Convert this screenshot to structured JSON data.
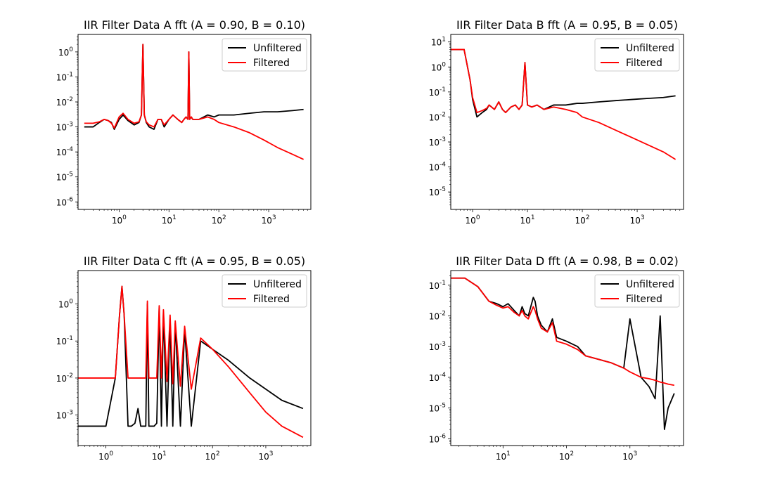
{
  "chart_data": [
    {
      "type": "line",
      "title": "IIR Filter Data A fft (A = 0.90, B = 0.10)",
      "xscale": "log",
      "yscale": "log",
      "xlim": [
        0.15,
        7000
      ],
      "ylim": [
        5e-07,
        5
      ],
      "xticks": [
        {
          "value": 1,
          "label": "10^0"
        },
        {
          "value": 10,
          "label": "10^1"
        },
        {
          "value": 100,
          "label": "10^2"
        },
        {
          "value": 1000,
          "label": "10^3"
        }
      ],
      "yticks": [
        {
          "value": 1e-06,
          "label": "10^-6"
        },
        {
          "value": 1e-05,
          "label": "10^-5"
        },
        {
          "value": 0.0001,
          "label": "10^-4"
        },
        {
          "value": 0.001,
          "label": "10^-3"
        },
        {
          "value": 0.01,
          "label": "10^-2"
        },
        {
          "value": 0.1,
          "label": "10^-1"
        },
        {
          "value": 1,
          "label": "10^0"
        }
      ],
      "legend": {
        "position": "top-right",
        "entries": [
          "Unfiltered",
          "Filtered"
        ]
      },
      "series": [
        {
          "name": "Unfiltered",
          "color": "#000000",
          "x": [
            0.2,
            0.3,
            0.4,
            0.5,
            0.6,
            0.7,
            0.8,
            1.0,
            1.2,
            1.5,
            2.0,
            2.5,
            2.8,
            3.0,
            3.2,
            3.5,
            4.0,
            5.0,
            6.0,
            7.0,
            8.0,
            10,
            12,
            15,
            18,
            20,
            22,
            24,
            25,
            26,
            28,
            30,
            40,
            60,
            80,
            100,
            200,
            400,
            800,
            1500,
            3000,
            5000
          ],
          "y": [
            0.001,
            0.001,
            0.0015,
            0.002,
            0.0018,
            0.0015,
            0.0008,
            0.002,
            0.003,
            0.0018,
            0.0012,
            0.0015,
            0.003,
            2.0,
            0.003,
            0.0015,
            0.001,
            0.0008,
            0.002,
            0.002,
            0.001,
            0.002,
            0.003,
            0.002,
            0.0015,
            0.002,
            0.0025,
            0.002,
            1.0,
            0.002,
            0.0025,
            0.002,
            0.002,
            0.003,
            0.0025,
            0.003,
            0.003,
            0.0035,
            0.004,
            0.004,
            0.0045,
            0.005
          ]
        },
        {
          "name": "Filtered",
          "color": "#ff0000",
          "x": [
            0.2,
            0.3,
            0.4,
            0.5,
            0.6,
            0.7,
            0.8,
            1.0,
            1.2,
            1.5,
            2.0,
            2.5,
            2.8,
            3.0,
            3.2,
            3.5,
            4.0,
            5.0,
            6.0,
            7.0,
            8.0,
            10,
            12,
            15,
            18,
            20,
            22,
            24,
            25,
            26,
            28,
            30,
            40,
            60,
            80,
            100,
            200,
            400,
            800,
            1500,
            3000,
            5000
          ],
          "y": [
            0.0014,
            0.0014,
            0.0016,
            0.002,
            0.0018,
            0.0014,
            0.0009,
            0.0025,
            0.0035,
            0.002,
            0.0014,
            0.0016,
            0.003,
            2.0,
            0.003,
            0.0016,
            0.0012,
            0.001,
            0.002,
            0.002,
            0.0012,
            0.002,
            0.003,
            0.002,
            0.0015,
            0.002,
            0.0025,
            0.002,
            1.0,
            0.002,
            0.0025,
            0.002,
            0.002,
            0.0025,
            0.002,
            0.0015,
            0.001,
            0.0006,
            0.0003,
            0.00015,
            8e-05,
            5e-05
          ]
        }
      ]
    },
    {
      "type": "line",
      "title": "IIR Filter Data B fft (A = 0.95, B = 0.05)",
      "xscale": "log",
      "yscale": "log",
      "xlim": [
        0.4,
        7000
      ],
      "ylim": [
        2e-06,
        20
      ],
      "xticks": [
        {
          "value": 1,
          "label": "10^0"
        },
        {
          "value": 10,
          "label": "10^1"
        },
        {
          "value": 100,
          "label": "10^2"
        },
        {
          "value": 1000,
          "label": "10^3"
        }
      ],
      "yticks": [
        {
          "value": 1e-05,
          "label": "10^-5"
        },
        {
          "value": 0.0001,
          "label": "10^-4"
        },
        {
          "value": 0.001,
          "label": "10^-3"
        },
        {
          "value": 0.01,
          "label": "10^-2"
        },
        {
          "value": 0.1,
          "label": "10^-1"
        },
        {
          "value": 1,
          "label": "10^0"
        },
        {
          "value": 10,
          "label": "10^1"
        }
      ],
      "legend": {
        "position": "top-right",
        "entries": [
          "Unfiltered",
          "Filtered"
        ]
      },
      "series": [
        {
          "name": "Unfiltered",
          "color": "#000000",
          "x": [
            0.4,
            0.6,
            0.7,
            0.9,
            1.0,
            1.2,
            1.5,
            1.8,
            2.0,
            2.5,
            3.0,
            3.5,
            4.0,
            5.0,
            6.0,
            7.0,
            8.0,
            9.0,
            10,
            12,
            15,
            20,
            30,
            50,
            80,
            100,
            200,
            400,
            800,
            1500,
            3000,
            5000
          ],
          "y": [
            5,
            5,
            5,
            0.3,
            0.05,
            0.01,
            0.015,
            0.02,
            0.03,
            0.02,
            0.04,
            0.02,
            0.015,
            0.025,
            0.03,
            0.02,
            0.03,
            1.5,
            0.03,
            0.025,
            0.03,
            0.02,
            0.03,
            0.03,
            0.035,
            0.035,
            0.04,
            0.045,
            0.05,
            0.055,
            0.06,
            0.07
          ]
        },
        {
          "name": "Filtered",
          "color": "#ff0000",
          "x": [
            0.4,
            0.6,
            0.7,
            0.9,
            1.0,
            1.2,
            1.5,
            1.8,
            2.0,
            2.5,
            3.0,
            3.5,
            4.0,
            5.0,
            6.0,
            7.0,
            8.0,
            9.0,
            10,
            12,
            15,
            20,
            30,
            50,
            80,
            100,
            200,
            400,
            800,
            1500,
            3000,
            5000
          ],
          "y": [
            5,
            5,
            5,
            0.3,
            0.06,
            0.015,
            0.018,
            0.022,
            0.03,
            0.02,
            0.04,
            0.02,
            0.015,
            0.025,
            0.03,
            0.02,
            0.03,
            1.5,
            0.03,
            0.025,
            0.03,
            0.02,
            0.025,
            0.02,
            0.015,
            0.01,
            0.006,
            0.003,
            0.0015,
            0.0008,
            0.0004,
            0.0002
          ]
        }
      ]
    },
    {
      "type": "line",
      "title": "IIR Filter Data C fft (A = 0.95, B = 0.05)",
      "xscale": "log",
      "yscale": "log",
      "xlim": [
        0.3,
        7000
      ],
      "ylim": [
        0.00015,
        8
      ],
      "xticks": [
        {
          "value": 1,
          "label": "10^0"
        },
        {
          "value": 10,
          "label": "10^1"
        },
        {
          "value": 100,
          "label": "10^2"
        },
        {
          "value": 1000,
          "label": "10^3"
        }
      ],
      "yticks": [
        {
          "value": 0.001,
          "label": "10^-3"
        },
        {
          "value": 0.01,
          "label": "10^-2"
        },
        {
          "value": 0.1,
          "label": "10^-1"
        },
        {
          "value": 1,
          "label": "10^0"
        }
      ],
      "legend": {
        "position": "top-right",
        "entries": [
          "Unfiltered",
          "Filtered"
        ]
      },
      "series": [
        {
          "name": "Unfiltered",
          "color": "#000000",
          "x": [
            0.3,
            1.0,
            1.5,
            1.8,
            2.0,
            2.2,
            2.6,
            3.0,
            3.5,
            4.0,
            4.5,
            5.0,
            5.6,
            6.0,
            6.4,
            7.0,
            8.0,
            9.0,
            10,
            11,
            12,
            14,
            16,
            18,
            20,
            25,
            30,
            40,
            60,
            100,
            200,
            500,
            1000,
            2000,
            5000
          ],
          "y": [
            0.0005,
            0.0005,
            0.01,
            0.5,
            3.0,
            0.5,
            0.0005,
            0.0005,
            0.0006,
            0.0015,
            0.0005,
            0.0005,
            0.0005,
            1.0,
            0.0005,
            0.0005,
            0.0005,
            0.0006,
            0.8,
            0.0005,
            0.6,
            0.0005,
            0.4,
            0.0005,
            0.3,
            0.0005,
            0.2,
            0.0005,
            0.1,
            0.06,
            0.03,
            0.01,
            0.005,
            0.0025,
            0.0015
          ]
        },
        {
          "name": "Filtered",
          "color": "#ff0000",
          "x": [
            0.3,
            1.0,
            1.5,
            1.8,
            2.0,
            2.2,
            2.6,
            3.0,
            4.0,
            5.0,
            5.6,
            6.0,
            6.4,
            7.0,
            8.0,
            9.0,
            10,
            11,
            12,
            14,
            16,
            18,
            20,
            25,
            30,
            40,
            60,
            100,
            200,
            500,
            1000,
            2000,
            5000
          ],
          "y": [
            0.01,
            0.01,
            0.01,
            0.5,
            3.0,
            0.5,
            0.01,
            0.01,
            0.01,
            0.01,
            0.01,
            1.2,
            0.01,
            0.01,
            0.01,
            0.01,
            0.9,
            0.01,
            0.7,
            0.008,
            0.5,
            0.007,
            0.35,
            0.006,
            0.25,
            0.005,
            0.12,
            0.06,
            0.02,
            0.004,
            0.0012,
            0.0005,
            0.00025
          ]
        }
      ]
    },
    {
      "type": "line",
      "title": "IIR Filter Data D fft (A = 0.98, B = 0.02)",
      "xscale": "log",
      "yscale": "log",
      "xlim": [
        1.5,
        7000
      ],
      "ylim": [
        6e-07,
        0.3
      ],
      "xticks": [
        {
          "value": 10,
          "label": "10^1"
        },
        {
          "value": 100,
          "label": "10^2"
        },
        {
          "value": 1000,
          "label": "10^3"
        }
      ],
      "yticks": [
        {
          "value": 1e-06,
          "label": "10^-6"
        },
        {
          "value": 1e-05,
          "label": "10^-5"
        },
        {
          "value": 0.0001,
          "label": "10^-4"
        },
        {
          "value": 0.001,
          "label": "10^-3"
        },
        {
          "value": 0.01,
          "label": "10^-2"
        },
        {
          "value": 0.1,
          "label": "10^-1"
        }
      ],
      "legend": {
        "position": "top-right",
        "entries": [
          "Unfiltered",
          "Filtered"
        ]
      },
      "series": [
        {
          "name": "Unfiltered",
          "color": "#000000",
          "x": [
            1.5,
            2.5,
            4.0,
            6.0,
            8.0,
            10,
            12,
            15,
            18,
            20,
            22,
            25,
            30,
            32,
            35,
            40,
            50,
            60,
            70,
            100,
            150,
            200,
            300,
            500,
            800,
            1000,
            1500,
            2000,
            2500,
            3000,
            3500,
            4000,
            5000
          ],
          "y": [
            0.17,
            0.17,
            0.09,
            0.03,
            0.025,
            0.02,
            0.025,
            0.015,
            0.01,
            0.02,
            0.012,
            0.01,
            0.04,
            0.03,
            0.01,
            0.005,
            0.003,
            0.008,
            0.002,
            0.0015,
            0.001,
            0.0005,
            0.0004,
            0.0003,
            0.0002,
            0.008,
            0.0001,
            5e-05,
            2e-05,
            0.01,
            2e-06,
            1e-05,
            3e-05
          ]
        },
        {
          "name": "Filtered",
          "color": "#ff0000",
          "x": [
            1.5,
            2.5,
            4.0,
            6.0,
            8.0,
            10,
            12,
            15,
            18,
            20,
            22,
            25,
            30,
            32,
            35,
            40,
            50,
            60,
            70,
            100,
            150,
            200,
            300,
            500,
            800,
            1000,
            1500,
            2000,
            2500,
            3000,
            3500,
            4000,
            5000
          ],
          "y": [
            0.17,
            0.17,
            0.09,
            0.03,
            0.022,
            0.018,
            0.02,
            0.013,
            0.01,
            0.015,
            0.01,
            0.008,
            0.02,
            0.015,
            0.008,
            0.004,
            0.003,
            0.006,
            0.0015,
            0.0012,
            0.0008,
            0.0005,
            0.0004,
            0.0003,
            0.0002,
            0.00015,
            0.0001,
            9e-05,
            8e-05,
            7e-05,
            6.5e-05,
            6e-05,
            5.5e-05
          ]
        }
      ]
    }
  ]
}
